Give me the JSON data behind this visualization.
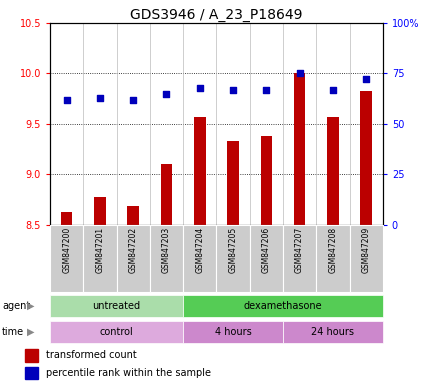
{
  "title": "GDS3946 / A_23_P18649",
  "samples": [
    "GSM847200",
    "GSM847201",
    "GSM847202",
    "GSM847203",
    "GSM847204",
    "GSM847205",
    "GSM847206",
    "GSM847207",
    "GSM847208",
    "GSM847209"
  ],
  "transformed_count": [
    8.63,
    8.77,
    8.68,
    9.1,
    9.57,
    9.33,
    9.38,
    10.0,
    9.57,
    9.83
  ],
  "percentile_rank": [
    62,
    63,
    62,
    65,
    68,
    67,
    67,
    75,
    67,
    72
  ],
  "ylim_left": [
    8.5,
    10.5
  ],
  "ylim_right": [
    0,
    100
  ],
  "yticks_left": [
    8.5,
    9.0,
    9.5,
    10.0,
    10.5
  ],
  "yticks_right": [
    0,
    25,
    50,
    75,
    100
  ],
  "ytick_labels_right": [
    "0",
    "25",
    "50",
    "75",
    "100%"
  ],
  "bar_color": "#bb0000",
  "dot_color": "#0000bb",
  "bar_bottom": 8.5,
  "agent_groups": [
    {
      "label": "untreated",
      "start": 0,
      "end": 4,
      "color": "#aaddaa"
    },
    {
      "label": "dexamethasone",
      "start": 4,
      "end": 10,
      "color": "#55cc55"
    }
  ],
  "time_groups": [
    {
      "label": "control",
      "start": 0,
      "end": 4,
      "color": "#ddaadd"
    },
    {
      "label": "4 hours",
      "start": 4,
      "end": 7,
      "color": "#cc88cc"
    },
    {
      "label": "24 hours",
      "start": 7,
      "end": 10,
      "color": "#cc88cc"
    }
  ],
  "legend_items": [
    {
      "color": "#bb0000",
      "label": "transformed count"
    },
    {
      "color": "#0000bb",
      "label": "percentile rank within the sample"
    }
  ],
  "agent_label": "agent",
  "time_label": "time",
  "background_color": "#ffffff",
  "plot_bg_color": "#ffffff",
  "title_fontsize": 10,
  "tick_fontsize": 7,
  "label_fontsize": 8
}
